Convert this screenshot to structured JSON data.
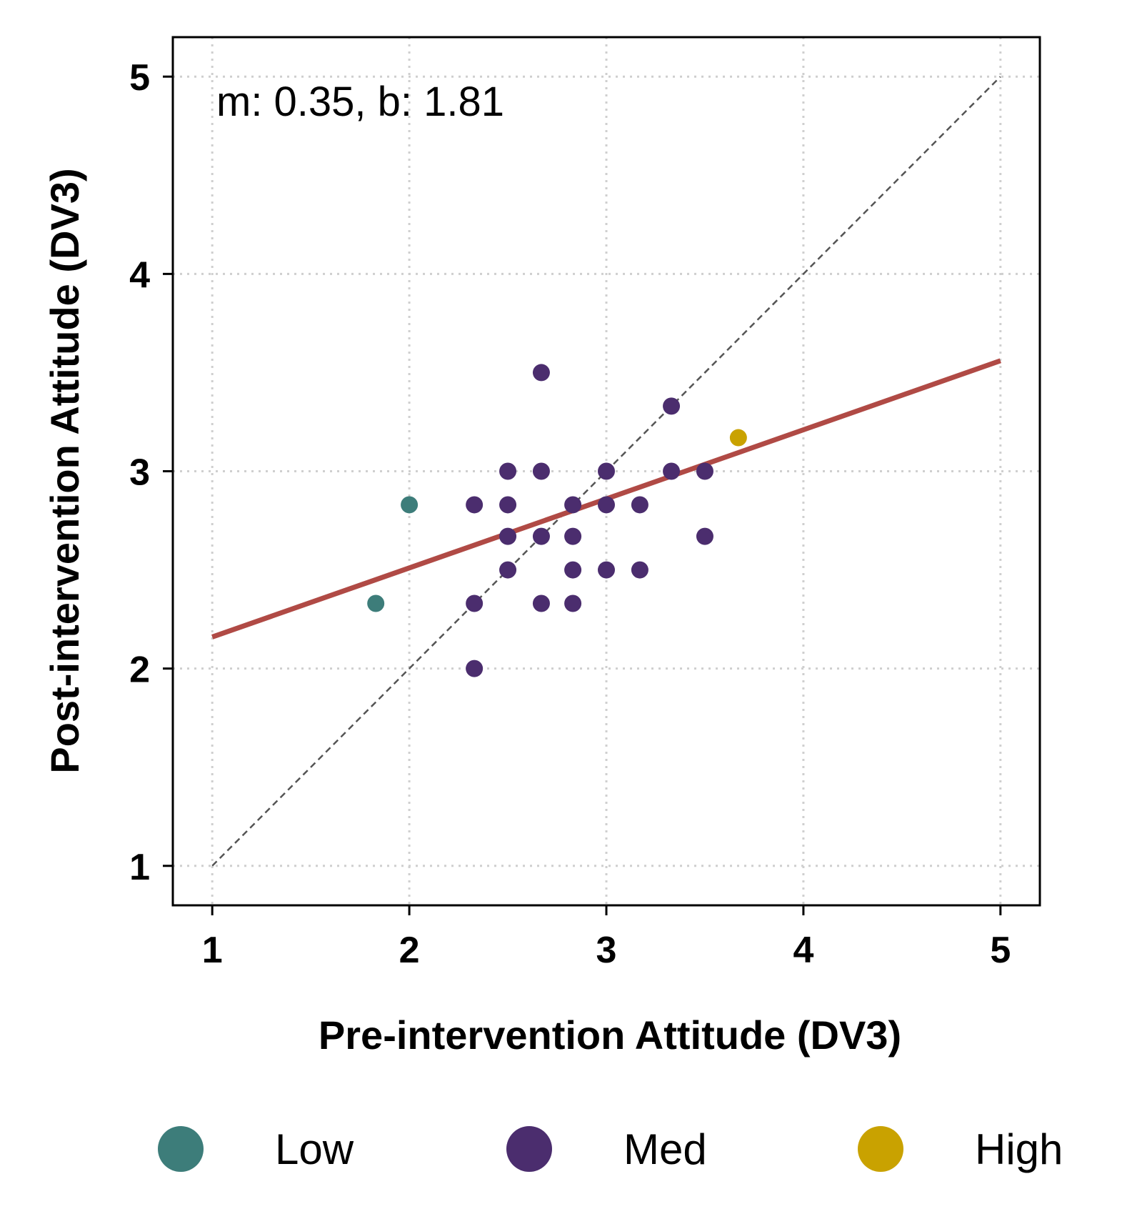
{
  "chart_data": {
    "type": "scatter",
    "xlabel": "Pre-intervention Attitude (DV3)",
    "ylabel": "Post-intervention Attitude (DV3)",
    "xlim": [
      0.8,
      5.2
    ],
    "ylim": [
      0.8,
      5.2
    ],
    "xticks": [
      "1",
      "2",
      "3",
      "4",
      "5"
    ],
    "yticks": [
      "1",
      "2",
      "3",
      "4",
      "5"
    ],
    "grid": true,
    "legend_position": "bottom",
    "annotation": "m: 0.35, b: 1.81",
    "fit_line": {
      "slope": 0.35,
      "intercept": 1.81,
      "x_range": [
        1,
        5
      ],
      "color": "#b04a45"
    },
    "identity_line": {
      "from": [
        1,
        1
      ],
      "to": [
        5,
        5
      ],
      "color": "#555555"
    },
    "series": [
      {
        "name": "Low",
        "color": "#3d7d7a",
        "points": [
          [
            1.83,
            2.33
          ],
          [
            2.0,
            2.83
          ]
        ]
      },
      {
        "name": "Med",
        "color": "#4b2d6e",
        "points": [
          [
            2.67,
            3.5
          ],
          [
            3.33,
            3.33
          ],
          [
            2.5,
            3.0
          ],
          [
            2.67,
            3.0
          ],
          [
            3.0,
            3.0
          ],
          [
            3.33,
            3.0
          ],
          [
            3.5,
            3.0
          ],
          [
            2.33,
            2.83
          ],
          [
            2.5,
            2.83
          ],
          [
            2.83,
            2.83
          ],
          [
            3.0,
            2.83
          ],
          [
            3.17,
            2.83
          ],
          [
            2.5,
            2.67
          ],
          [
            2.67,
            2.67
          ],
          [
            2.83,
            2.67
          ],
          [
            3.5,
            2.67
          ],
          [
            2.5,
            2.5
          ],
          [
            2.83,
            2.5
          ],
          [
            3.0,
            2.5
          ],
          [
            3.17,
            2.5
          ],
          [
            2.33,
            2.33
          ],
          [
            2.67,
            2.33
          ],
          [
            2.83,
            2.33
          ],
          [
            2.33,
            2.0
          ]
        ]
      },
      {
        "name": "High",
        "color": "#c9a200",
        "points": [
          [
            3.67,
            3.17
          ]
        ]
      }
    ]
  }
}
